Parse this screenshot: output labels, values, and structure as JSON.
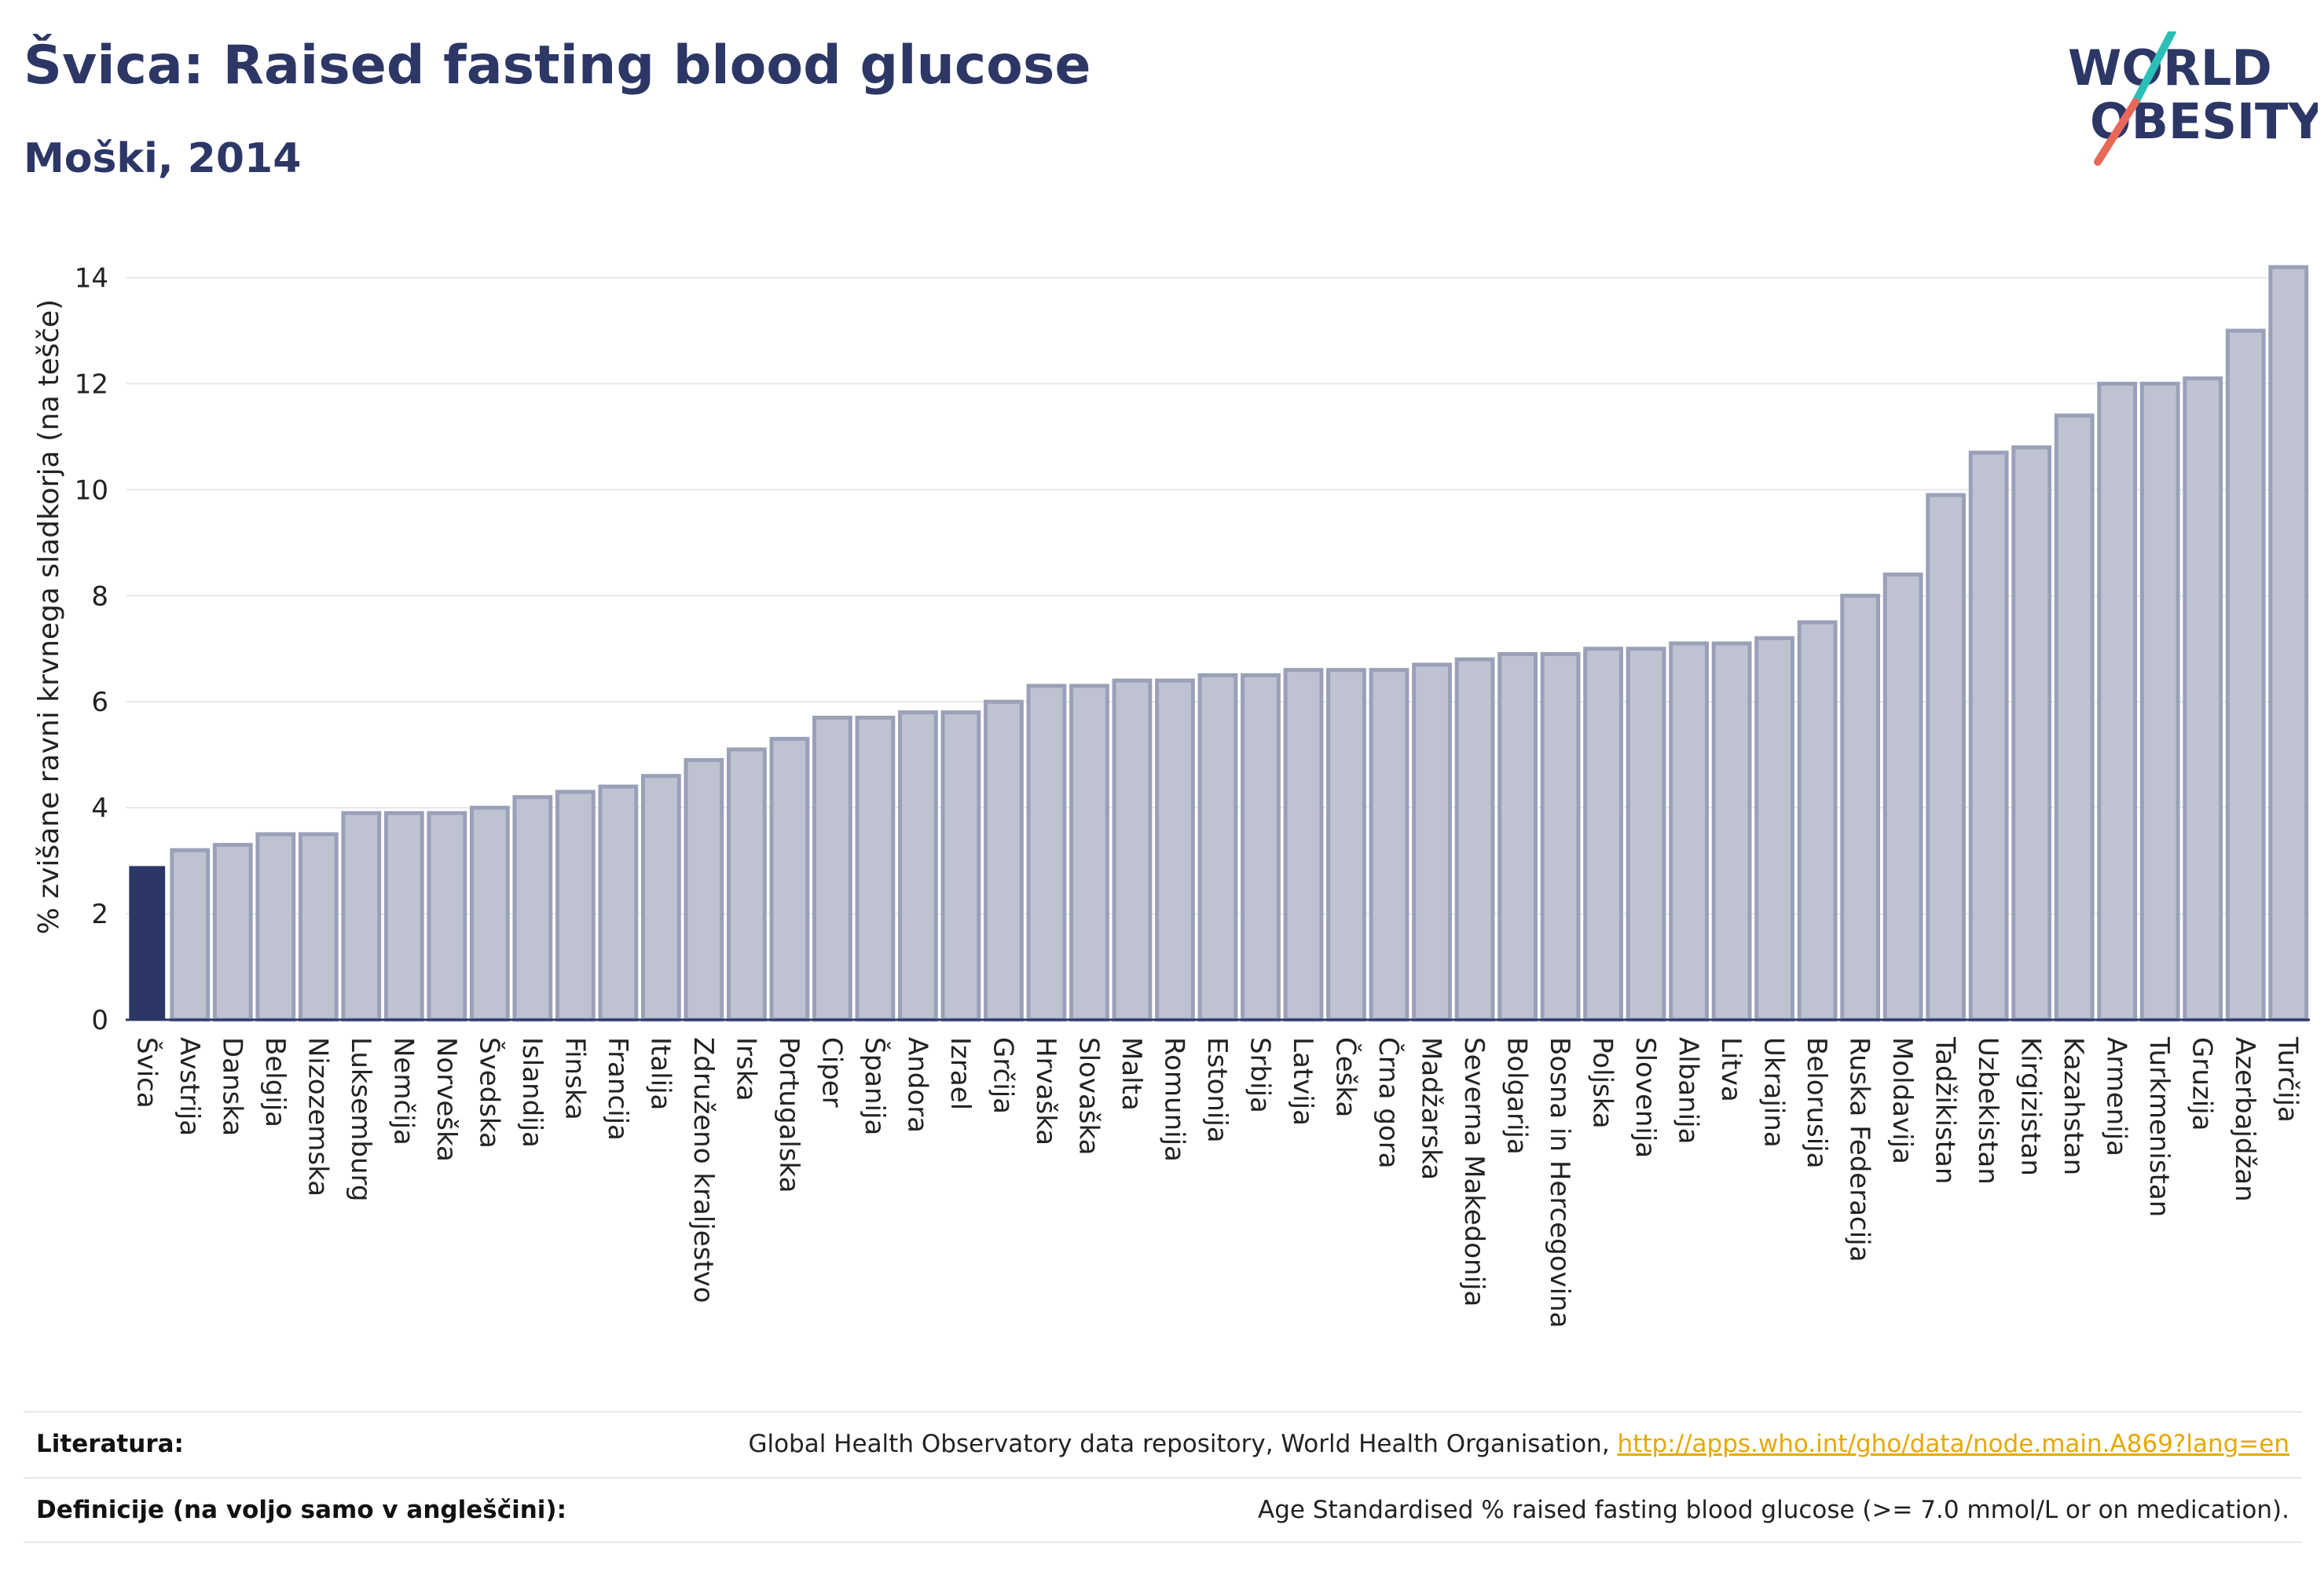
{
  "title": "Švica: Raised fasting blood glucose",
  "subtitle": "Moški, 2014",
  "logo": {
    "line1": "WORLD",
    "line2": "OBESITY"
  },
  "colors": {
    "highlight": "#2c3766",
    "bar_fill": "#bfc3d1",
    "bar_stroke": "#9aa0b8",
    "logo_text": "#2c3766",
    "logo_slash_top": "#2bbfb8",
    "logo_slash_bottom": "#e8695a",
    "link": "#e8a800"
  },
  "chart_data": {
    "type": "bar",
    "ylabel": "% zvišane ravni krvnega sladkorja (na tešče)",
    "ylim": [
      0,
      14.6
    ],
    "yticks": [
      0,
      2,
      4,
      6,
      8,
      10,
      12,
      14
    ],
    "grid": true,
    "highlight_category": "Švica",
    "categories": [
      "Švica",
      "Avstrija",
      "Danska",
      "Belgija",
      "Nizozemska",
      "Luksemburg",
      "Nemčija",
      "Norveška",
      "Švedska",
      "Islandija",
      "Finska",
      "Francija",
      "Italija",
      "Združeno kraljestvo",
      "Irska",
      "Portugalska",
      "Ciper",
      "Španija",
      "Andora",
      "Izrael",
      "Grčija",
      "Hrvaška",
      "Slovaška",
      "Malta",
      "Romunija",
      "Estonija",
      "Srbija",
      "Latvija",
      "Češka",
      "Črna gora",
      "Madžarska",
      "Severna Makedonija",
      "Bolgarija",
      "Bosna in Hercegovina",
      "Poljska",
      "Slovenija",
      "Albanija",
      "Litva",
      "Ukrajina",
      "Belorusija",
      "Ruska Federacija",
      "Moldavija",
      "Tadžikistan",
      "Uzbekistan",
      "Kirgizistan",
      "Kazahstan",
      "Armenija",
      "Turkmenistan",
      "Gruzija",
      "Azerbajdžan",
      "Turčija"
    ],
    "values": [
      2.9,
      3.2,
      3.3,
      3.5,
      3.5,
      3.9,
      3.9,
      3.9,
      4.0,
      4.2,
      4.3,
      4.4,
      4.6,
      4.9,
      5.1,
      5.3,
      5.7,
      5.7,
      5.8,
      5.8,
      6.0,
      6.3,
      6.3,
      6.4,
      6.4,
      6.5,
      6.5,
      6.6,
      6.6,
      6.6,
      6.7,
      6.8,
      6.9,
      6.9,
      7.0,
      7.0,
      7.1,
      7.1,
      7.2,
      7.5,
      8.0,
      8.4,
      9.9,
      10.7,
      10.8,
      11.4,
      12.0,
      12.0,
      12.1,
      13.0,
      14.2
    ]
  },
  "footer": {
    "source_label": "Literatura:",
    "source_text": "Global Health Observatory data repository, World Health Organisation, ",
    "source_link": "http://apps.who.int/gho/data/node.main.A869?lang=en",
    "definition_label": "Definicije (na voljo samo v angleščini):",
    "definition_text": "Age Standardised % raised fasting blood glucose (>= 7.0 mmol/L or on medication)."
  }
}
